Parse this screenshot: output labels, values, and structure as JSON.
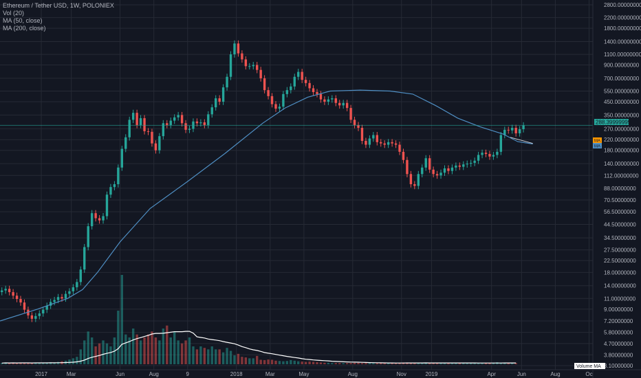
{
  "legend": {
    "title": "Ethereum / Tether USD, 1W, POLONIEX",
    "vol": "Vol (20)",
    "ma50": "MA (50, close)",
    "ma200": "MA (200, close)"
  },
  "price_tag": "288.39999999",
  "ma_tag_1": "MA",
  "ma_tag_2": "MA",
  "volume_ma_label": "Volume MA",
  "colors": {
    "background": "#131722",
    "grid": "#262a35",
    "up": "#26a69a",
    "down": "#ef5350",
    "ma": "#4f8fc4",
    "vol_ma": "#ffffff",
    "price_tag": "#26a69a",
    "ma_tag_orange": "#ff9800",
    "ma_tag_blue": "#4f8fc4"
  },
  "chart_data": {
    "type": "candlestick",
    "x_ticks": [
      {
        "label": "2017",
        "week": 11
      },
      {
        "label": "Mar",
        "week": 19
      },
      {
        "label": "Jun",
        "week": 32
      },
      {
        "label": "Aug",
        "week": 41
      },
      {
        "label": "9",
        "week": 50
      },
      {
        "label": "2018",
        "week": 63
      },
      {
        "label": "Mar",
        "week": 72
      },
      {
        "label": "May",
        "week": 81
      },
      {
        "label": "Aug",
        "week": 94
      },
      {
        "label": "Nov",
        "week": 107
      },
      {
        "label": "2019",
        "week": 115
      },
      {
        "label": "Apr",
        "week": 131
      },
      {
        "label": "Jun",
        "week": 139
      },
      {
        "label": "Aug",
        "week": 148
      },
      {
        "label": "Oc",
        "week": 157
      }
    ],
    "y_ticks": [
      "2800.00000000",
      "2200.00000000",
      "1800.00000000",
      "1400.00000000",
      "1100.00000000",
      "900.00000000",
      "700.00000000",
      "550.00000000",
      "450.00000000",
      "350.00000000",
      "270.00000000",
      "220.00000000",
      "180.00000000",
      "140.00000000",
      "112.00000000",
      "88.00000000",
      "70.50000000",
      "56.50000000",
      "44.50000000",
      "34.50000000",
      "27.50000000",
      "22.50000000",
      "18.00000000",
      "14.00000000",
      "11.00000000",
      "9.00000000",
      "7.20000000",
      "5.80000000",
      "4.70000000",
      "3.80000000",
      "3.10000000"
    ],
    "ylim": [
      3.1,
      2800
    ],
    "y_scale": "log",
    "closes": [
      12.8,
      13.2,
      12.4,
      11.6,
      10.9,
      10.2,
      8.9,
      8.0,
      7.5,
      7.9,
      8.3,
      8.9,
      9.6,
      10.3,
      10.7,
      11.3,
      11.0,
      12.0,
      12.6,
      13.6,
      15.0,
      19.0,
      29.0,
      43.0,
      55.0,
      50.0,
      48.0,
      52.0,
      78.0,
      90.0,
      95.0,
      130.0,
      185.0,
      230.0,
      320.0,
      365.0,
      290.0,
      330.0,
      258.0,
      255.0,
      205.0,
      180.0,
      235.0,
      300.0,
      290.0,
      315.0,
      335.0,
      350.0,
      300.0,
      265.0,
      270.0,
      310.0,
      300.0,
      305.0,
      290.0,
      355.0,
      405.0,
      480.0,
      450.0,
      590.0,
      720.0,
      1100.0,
      1350.0,
      1120.0,
      1000.0,
      880.0,
      880.0,
      900.0,
      820.0,
      700.0,
      560.0,
      500.0,
      430.0,
      395.0,
      410.0,
      520.0,
      560.0,
      600.0,
      720.0,
      790.0,
      680.0,
      640.0,
      580.0,
      540.0,
      520.0,
      470.0,
      450.0,
      470.0,
      480.0,
      440.0,
      420.0,
      440.0,
      400.0,
      320.0,
      290.0,
      275.0,
      215.0,
      200.0,
      225.0,
      240.0,
      210.0,
      205.0,
      200.0,
      210.0,
      205.0,
      200.0,
      175.0,
      150.0,
      115.0,
      95.0,
      92.0,
      115.0,
      130.0,
      155.0,
      125.0,
      115.0,
      112.0,
      118.0,
      128.0,
      122.0,
      130.0,
      135.0,
      132.0,
      138.0,
      140.0,
      142.0,
      148.0,
      165.0,
      172.0,
      168.0,
      160.0,
      165.0,
      175.0,
      240.0,
      265.0,
      262.0,
      275.0,
      248.0,
      268.0,
      288.4
    ],
    "volumes": [
      0.4,
      0.5,
      0.4,
      0.5,
      0.4,
      0.5,
      0.5,
      0.4,
      0.4,
      0.5,
      0.5,
      0.5,
      0.6,
      0.7,
      0.6,
      0.8,
      1.0,
      1.2,
      1.6,
      2.0,
      2.5,
      5.0,
      8.0,
      11.0,
      9.0,
      6.0,
      7.0,
      8.0,
      7.0,
      6.0,
      9.0,
      18.0,
      30.0,
      10.0,
      9.0,
      12.0,
      10.0,
      8.0,
      9.0,
      10.0,
      11.0,
      9.0,
      8.0,
      12.0,
      13.0,
      9.0,
      11.0,
      8.0,
      7.0,
      8.0,
      9.0,
      6.0,
      5.0,
      6.0,
      5.5,
      5.0,
      6.0,
      5.0,
      5.0,
      4.0,
      5.5,
      4.5,
      3.0,
      3.5,
      2.5,
      2.3,
      2.0,
      2.0,
      2.8,
      1.5,
      1.4,
      1.6,
      1.5,
      1.2,
      1.1,
      1.0,
      1.1,
      1.4,
      1.2,
      1.0,
      0.9,
      0.8,
      0.9,
      0.8,
      0.7,
      0.6,
      0.5,
      0.5,
      0.4,
      0.4,
      0.4,
      0.4,
      0.4,
      0.4,
      0.5,
      0.5,
      0.4,
      0.4,
      0.4,
      0.4,
      0.4,
      0.4,
      0.4,
      0.4,
      0.4,
      0.4,
      0.5,
      0.6,
      0.6,
      0.5,
      0.5,
      0.4,
      0.4,
      0.5,
      0.4,
      0.4,
      0.4,
      0.4,
      0.4,
      0.4,
      0.4,
      0.4,
      0.4,
      0.4,
      0.4,
      0.4,
      0.4,
      0.4,
      0.4,
      0.4,
      0.4,
      0.5,
      0.7,
      0.5,
      0.5,
      0.4,
      0.4,
      0.4
    ],
    "ma_line": [
      [
        0,
        7.2
      ],
      [
        10,
        9.0
      ],
      [
        18,
        11.0
      ],
      [
        22,
        13.0
      ],
      [
        26,
        18.0
      ],
      [
        32,
        32.0
      ],
      [
        40,
        60.0
      ],
      [
        50,
        100.0
      ],
      [
        60,
        170.0
      ],
      [
        70,
        300.0
      ],
      [
        76,
        400.0
      ],
      [
        82,
        490.0
      ],
      [
        88,
        550.0
      ],
      [
        96,
        560.0
      ],
      [
        104,
        550.0
      ],
      [
        110,
        520.0
      ],
      [
        116,
        420.0
      ],
      [
        122,
        330.0
      ],
      [
        128,
        280.0
      ],
      [
        134,
        245.0
      ],
      [
        138,
        212.0
      ],
      [
        142,
        203.0
      ]
    ],
    "ma_line_2": [
      [
        136,
        230.0
      ],
      [
        142,
        205.0
      ]
    ]
  }
}
